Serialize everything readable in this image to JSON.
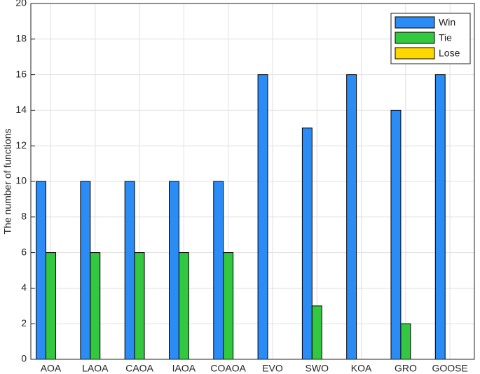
{
  "chart_data": {
    "type": "bar",
    "ylabel": "The number of functions",
    "categories": [
      "AOA",
      "LAOA",
      "CAOA",
      "IAOA",
      "COAOA",
      "EVO",
      "SWO",
      "KOA",
      "GRO",
      "GOOSE"
    ],
    "series": [
      {
        "name": "Win",
        "color": "#2b8cf5",
        "values": [
          10,
          10,
          10,
          10,
          10,
          16,
          13,
          16,
          14,
          16
        ]
      },
      {
        "name": "Tie",
        "color": "#33c840",
        "values": [
          6,
          6,
          6,
          6,
          6,
          0,
          3,
          0,
          2,
          0
        ]
      },
      {
        "name": "Lose",
        "color": "#ffd700",
        "values": [
          0,
          0,
          0,
          0,
          0,
          0,
          0,
          0,
          0,
          0
        ]
      }
    ],
    "ylim": [
      0,
      20
    ],
    "yticks": [
      0,
      2,
      4,
      6,
      8,
      10,
      12,
      14,
      16,
      18,
      20
    ],
    "grid": true,
    "legend": "top-right"
  }
}
